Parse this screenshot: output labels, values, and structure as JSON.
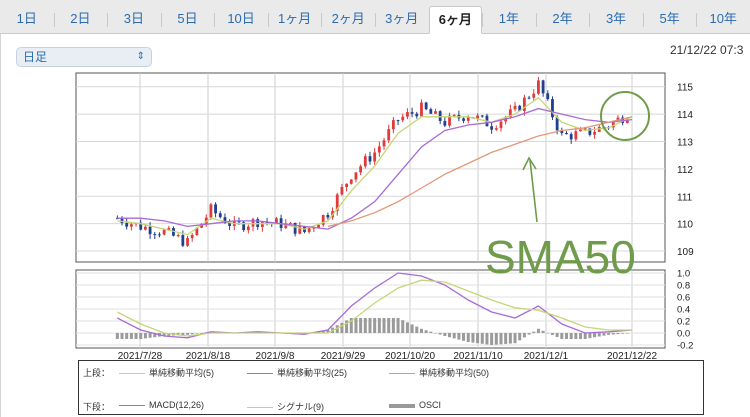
{
  "tabs": [
    {
      "label": "1日"
    },
    {
      "label": "2日"
    },
    {
      "label": "3日"
    },
    {
      "label": "5日"
    },
    {
      "label": "10日"
    },
    {
      "label": "1ヶ月"
    },
    {
      "label": "2ヶ月"
    },
    {
      "label": "3ヶ月"
    },
    {
      "label": "6ヶ月"
    },
    {
      "label": "1年"
    },
    {
      "label": "2年"
    },
    {
      "label": "3年"
    },
    {
      "label": "5年"
    },
    {
      "label": "10年"
    }
  ],
  "active_tab": "6ヶ月",
  "candle_select": {
    "value": "日足"
  },
  "timestamp": "21/12/22 07:3",
  "annotation": {
    "text": "SMA50",
    "color": "#6f9c4a"
  },
  "legend": {
    "upper_label": "上段：",
    "lower_label": "下段：",
    "upper": [
      {
        "name": "単純移動平均(5)",
        "color": "#c6d676"
      },
      {
        "name": "単純移動平均(25)",
        "color": "#a86bd6"
      },
      {
        "name": "単純移動平均(50)",
        "color": "#e09878"
      }
    ],
    "lower": [
      {
        "name": "MACD(12,26)",
        "color": "#a86bd6"
      },
      {
        "name": "シグナル(9)",
        "color": "#c6d676"
      },
      {
        "name": "OSCI",
        "color": "#9a9a9a"
      }
    ]
  },
  "chart_data": {
    "type": "candlestick",
    "x_ticks": [
      "2021/7/28",
      "2021/8/18",
      "2021/9/8",
      "2021/9/29",
      "2021/10/20",
      "2021/11/10",
      "2021/12/1",
      "2021/12/22"
    ],
    "upper": {
      "ylim": [
        108.6,
        115.5
      ],
      "y_ticks": [
        109,
        110,
        111,
        112,
        113,
        114,
        115
      ],
      "sample_dates": [
        "2021/7/21",
        "2021/7/28",
        "2021/8/4",
        "2021/8/11",
        "2021/8/18",
        "2021/8/25",
        "2021/9/1",
        "2021/9/8",
        "2021/9/15",
        "2021/9/22",
        "2021/9/29",
        "2021/10/6",
        "2021/10/13",
        "2021/10/20",
        "2021/10/27",
        "2021/11/3",
        "2021/11/10",
        "2021/11/17",
        "2021/11/24",
        "2021/12/1",
        "2021/12/8",
        "2021/12/15",
        "2021/12/22"
      ],
      "close": [
        110.2,
        109.9,
        109.7,
        109.3,
        110.5,
        109.9,
        110.1,
        110.0,
        109.7,
        110.4,
        111.8,
        112.6,
        113.8,
        114.2,
        113.7,
        114.0,
        113.6,
        114.1,
        115.1,
        113.2,
        113.3,
        113.6,
        114.1
      ],
      "series": [
        {
          "name": "単純移動平均(5)",
          "color": "#c6d676",
          "values": [
            110.1,
            110.0,
            109.8,
            109.6,
            110.2,
            110.0,
            110.0,
            110.0,
            109.8,
            110.1,
            111.2,
            112.1,
            113.3,
            113.9,
            113.9,
            113.9,
            113.7,
            114.0,
            114.6,
            113.7,
            113.4,
            113.5,
            113.9
          ]
        },
        {
          "name": "単純移動平均(25)",
          "color": "#a86bd6",
          "values": [
            110.2,
            110.2,
            110.1,
            109.9,
            110.0,
            110.1,
            110.1,
            110.0,
            109.9,
            109.8,
            110.2,
            110.8,
            111.8,
            112.8,
            113.4,
            113.6,
            113.7,
            113.9,
            114.2,
            114.0,
            113.8,
            113.7,
            113.8
          ]
        },
        {
          "name": "単純移動平均(50)",
          "color": "#e09878",
          "values": [
            null,
            null,
            null,
            null,
            null,
            null,
            null,
            null,
            null,
            109.9,
            110.1,
            110.4,
            110.8,
            111.3,
            111.8,
            112.2,
            112.6,
            112.9,
            113.2,
            113.4,
            113.5,
            113.7,
            113.9
          ]
        }
      ]
    },
    "lower": {
      "ylim": [
        -0.25,
        1.05
      ],
      "y_ticks": [
        1.0,
        0.8,
        0.6,
        0.4,
        0.2,
        0.0,
        -0.2
      ],
      "series": [
        {
          "name": "MACD(12,26)",
          "color": "#a86bd6",
          "values": [
            0.25,
            0.05,
            -0.05,
            -0.08,
            0.02,
            0.0,
            0.02,
            0.0,
            -0.02,
            0.05,
            0.45,
            0.75,
            1.0,
            0.95,
            0.8,
            0.55,
            0.35,
            0.25,
            0.45,
            0.15,
            0.0,
            0.02,
            0.05
          ]
        },
        {
          "name": "シグナル(9)",
          "color": "#c6d676",
          "values": [
            0.35,
            0.15,
            0.0,
            -0.05,
            0.0,
            0.0,
            0.0,
            0.0,
            0.0,
            0.0,
            0.2,
            0.5,
            0.75,
            0.88,
            0.85,
            0.7,
            0.55,
            0.42,
            0.38,
            0.25,
            0.1,
            0.05,
            0.05
          ]
        },
        {
          "name": "OSCI",
          "color": "#9a9a9a",
          "values": [
            -0.1,
            -0.1,
            -0.05,
            -0.03,
            0.02,
            0.0,
            0.02,
            0.0,
            -0.02,
            0.05,
            0.25,
            0.25,
            0.25,
            0.07,
            -0.05,
            -0.15,
            -0.2,
            -0.17,
            0.07,
            -0.1,
            -0.1,
            -0.03,
            0.0
          ]
        }
      ]
    }
  }
}
